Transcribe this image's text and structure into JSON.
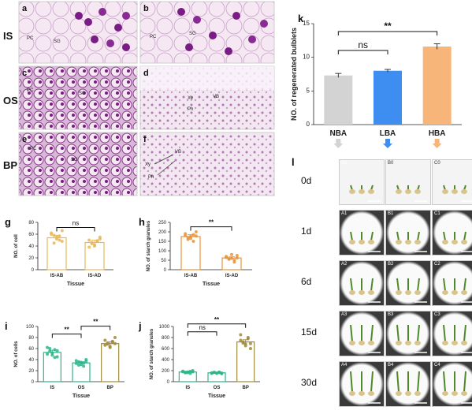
{
  "micro": {
    "panels": [
      {
        "letter": "a",
        "labels": [
          "PC",
          "SG"
        ]
      },
      {
        "letter": "b",
        "labels": [
          "PC",
          "SG"
        ]
      },
      {
        "letter": "c",
        "labels": [
          "PC",
          "SG"
        ]
      },
      {
        "letter": "d",
        "labels": [
          "Xy",
          "Ph",
          "VB"
        ]
      },
      {
        "letter": "e",
        "labels": [
          "PC",
          "SG"
        ]
      },
      {
        "letter": "f",
        "labels": [
          "Xy",
          "Ph",
          "VB"
        ]
      }
    ],
    "row_labels": [
      "IS",
      "OS",
      "BP"
    ]
  },
  "chart_data": [
    {
      "panel": "k",
      "type": "bar",
      "categories": [
        "NBA",
        "LBA",
        "HBA"
      ],
      "values": [
        7.3,
        8.0,
        11.6
      ],
      "errors": [
        0.3,
        0.2,
        0.4
      ],
      "colors": [
        "#d3d3d3",
        "#3d8ef0",
        "#f7b57a"
      ],
      "ylabel": "NO. of regenerated bulblets",
      "ylim": [
        0,
        15
      ],
      "yticks": [
        0,
        5,
        10,
        15
      ],
      "sig": [
        {
          "label": "ns",
          "from": 0,
          "to": 1
        },
        {
          "label": "**",
          "from": 0,
          "to": 2
        }
      ]
    },
    {
      "panel": "g",
      "type": "bar",
      "categories": [
        "IS-AB",
        "IS-AD"
      ],
      "values": [
        54,
        46
      ],
      "errors": [
        4,
        4
      ],
      "color": "#e8b85a",
      "xlabel": "Tissue",
      "ylabel": "NO. of cell",
      "ylim": [
        0,
        80
      ],
      "yticks": [
        0,
        20,
        40,
        60,
        80
      ],
      "points": [
        [
          62,
          58,
          55,
          50,
          48,
          60,
          45,
          52,
          57,
          66
        ],
        [
          50,
          44,
          40,
          48,
          55,
          38,
          46,
          42,
          49,
          52
        ]
      ],
      "sig": [
        {
          "label": "ns",
          "from": 0,
          "to": 1
        }
      ]
    },
    {
      "panel": "h",
      "type": "bar",
      "categories": [
        "IS-AB",
        "IS-AD"
      ],
      "values": [
        175,
        62
      ],
      "errors": [
        10,
        6
      ],
      "color": "#e8943a",
      "xlabel": "Tissue",
      "ylabel": "NO. of starch granules",
      "ylim": [
        0,
        250
      ],
      "yticks": [
        0,
        50,
        100,
        150,
        200,
        250
      ],
      "points": [
        [
          190,
          160,
          175,
          150,
          200,
          180,
          170,
          165,
          185,
          178
        ],
        [
          70,
          55,
          60,
          40,
          75,
          65,
          58,
          80,
          50,
          62
        ]
      ],
      "sig": [
        {
          "label": "**",
          "from": 0,
          "to": 1
        }
      ]
    },
    {
      "panel": "i",
      "type": "bar",
      "categories": [
        "IS",
        "OS",
        "BP"
      ],
      "values": [
        53,
        34,
        69
      ],
      "errors": [
        4,
        2,
        3
      ],
      "colors": [
        "#2bb58a",
        "#2bb58a",
        "#a08a3c"
      ],
      "xlabel": "Tissue",
      "ylabel": "NO. of cells",
      "ylim": [
        0,
        100
      ],
      "yticks": [
        0,
        20,
        40,
        60,
        80,
        100
      ],
      "points": [
        [
          62,
          55,
          48,
          58,
          45,
          50,
          60,
          52,
          44,
          56
        ],
        [
          38,
          30,
          35,
          28,
          40,
          33,
          36,
          31,
          34,
          37
        ],
        [
          75,
          68,
          62,
          72,
          80,
          66,
          70,
          64,
          73,
          69
        ]
      ],
      "sig": [
        {
          "label": "**",
          "from": 0,
          "to": 1
        },
        {
          "label": "**",
          "from": 1,
          "to": 2
        }
      ]
    },
    {
      "panel": "j",
      "type": "bar",
      "categories": [
        "IS",
        "OS",
        "BP"
      ],
      "values": [
        175,
        160,
        720
      ],
      "errors": [
        10,
        8,
        40
      ],
      "colors": [
        "#2bb58a",
        "#2bb58a",
        "#a08a3c"
      ],
      "xlabel": "Tissue",
      "ylabel": "NO. of starch granules",
      "ylim": [
        0,
        1000
      ],
      "yticks": [
        0,
        200,
        400,
        600,
        800,
        1000
      ],
      "points": [
        [
          190,
          160,
          175,
          150,
          200,
          180,
          170,
          165,
          185,
          178
        ],
        [
          150,
          170,
          155,
          165,
          145,
          160,
          168,
          152,
          175,
          158
        ],
        [
          850,
          700,
          650,
          800,
          600,
          750,
          720,
          680,
          780,
          690
        ]
      ],
      "sig": [
        {
          "label": "ns",
          "from": 0,
          "to": 1
        },
        {
          "label": "**",
          "from": 0,
          "to": 2
        }
      ]
    }
  ],
  "photos": {
    "panel": "l",
    "rows": [
      "0d",
      "1d",
      "6d",
      "15d",
      "30d"
    ],
    "cols": [
      "A",
      "B",
      "C"
    ]
  }
}
